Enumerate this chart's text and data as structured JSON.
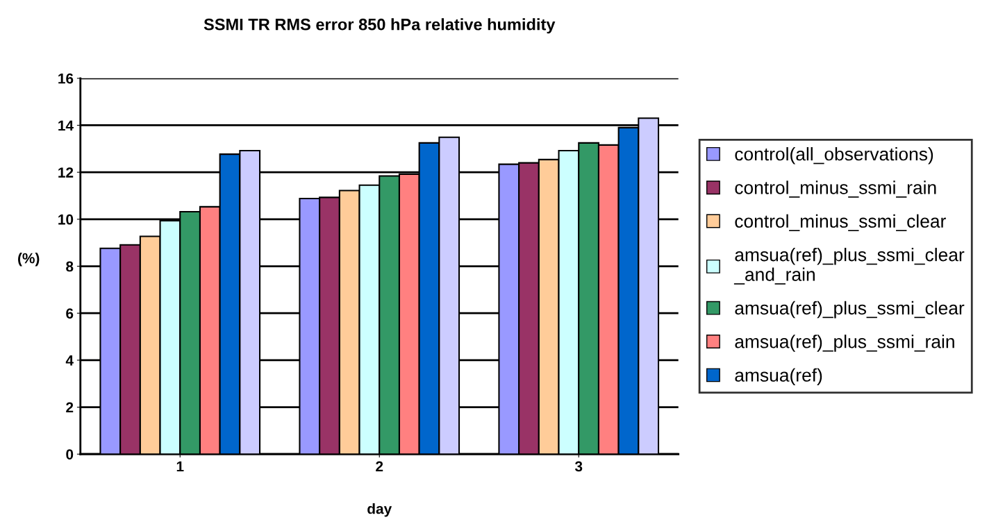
{
  "chart_data": {
    "type": "bar",
    "title": "SSMI TR RMS error 850 hPa relative humidity",
    "xlabel": "day",
    "ylabel": "(%)",
    "categories": [
      "1",
      "2",
      "3"
    ],
    "series": [
      {
        "name": "control(all_observations)",
        "color": "#9999ff",
        "values": [
          8.76,
          10.88,
          12.34
        ]
      },
      {
        "name": "control_minus_ssmi_rain",
        "color": "#993366",
        "values": [
          8.91,
          10.93,
          12.4
        ]
      },
      {
        "name": "control_minus_ssmi_clear",
        "color": "#ffcc99",
        "values": [
          9.27,
          11.22,
          12.54
        ]
      },
      {
        "name": "amsua(ref)_plus_ssmi_clear\n_and_rain",
        "color": "#ccffff",
        "values": [
          9.94,
          11.45,
          12.92
        ]
      },
      {
        "name": "amsua(ref)_plus_ssmi_clear",
        "color": "#339966",
        "values": [
          10.32,
          11.84,
          13.25
        ]
      },
      {
        "name": "amsua(ref)_plus_ssmi_rain",
        "color": "#ff8080",
        "values": [
          10.53,
          11.92,
          13.16
        ]
      },
      {
        "name": "amsua(ref)",
        "color": "#0066cc",
        "values": [
          12.77,
          13.25,
          13.9
        ]
      },
      {
        "color": "#ccccff",
        "values": [
          12.92,
          13.49,
          14.3
        ]
      }
    ],
    "ylim": [
      0,
      16
    ],
    "yticks": [
      0,
      2,
      4,
      6,
      8,
      10,
      12,
      14,
      16
    ],
    "grid": "y",
    "legend": "right"
  }
}
